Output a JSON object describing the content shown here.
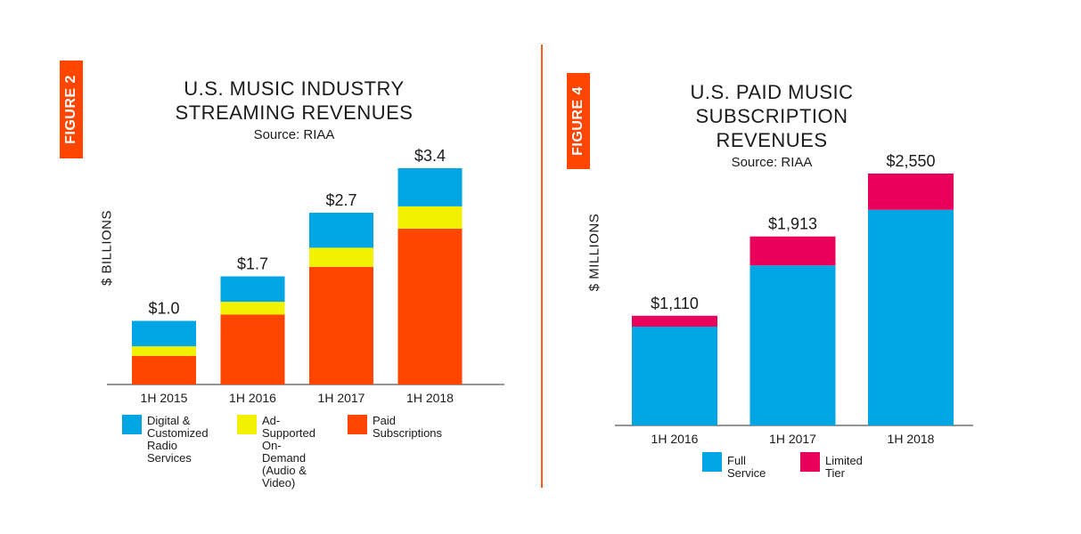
{
  "left": {
    "figure_tab": "FIGURE 2",
    "title_line1": "U.S. MUSIC INDUSTRY",
    "title_line2": "STREAMING REVENUES",
    "source": "Source: RIAA",
    "ylabel": "$ BILLIONS",
    "legend": [
      {
        "label": "Digital &\nCustomized\nRadio Services",
        "color": "#00a6e3"
      },
      {
        "label": "Ad-Supported\nOn-Demand\n(Audio & Video)",
        "color": "#f2f200"
      },
      {
        "label": "Paid Subscriptions",
        "color": "#ff4500"
      }
    ]
  },
  "right": {
    "figure_tab": "FIGURE 4",
    "title_line1": "U.S. PAID MUSIC",
    "title_line2": "SUBSCRIPTION REVENUES",
    "source": "Source: RIAA",
    "ylabel": "$ MILLIONS",
    "legend": [
      {
        "label": "Full Service",
        "color": "#00a6e3"
      },
      {
        "label": "Limited Tier",
        "color": "#e8005a"
      }
    ]
  },
  "chart_data": [
    {
      "type": "bar",
      "stacked": true,
      "title": "U.S. MUSIC INDUSTRY STREAMING REVENUES",
      "subtitle": "Source: RIAA",
      "xlabel": "",
      "ylabel": "$ BILLIONS",
      "categories": [
        "1H 2015",
        "1H 2016",
        "1H 2017",
        "1H 2018"
      ],
      "series": [
        {
          "name": "Paid Subscriptions",
          "color": "#ff4500",
          "values": [
            0.45,
            1.1,
            1.85,
            2.45
          ]
        },
        {
          "name": "Ad-Supported On-Demand (Audio & Video)",
          "color": "#f2f200",
          "values": [
            0.15,
            0.2,
            0.3,
            0.35
          ]
        },
        {
          "name": "Digital & Customized Radio Services",
          "color": "#00a6e3",
          "values": [
            0.4,
            0.4,
            0.55,
            0.6
          ]
        }
      ],
      "totals": [
        1.0,
        1.7,
        2.7,
        3.4
      ],
      "total_labels": [
        "$1.0",
        "$1.7",
        "$2.7",
        "$3.4"
      ],
      "ylim": [
        0,
        3.4
      ],
      "grid": false,
      "legend_position": "bottom"
    },
    {
      "type": "bar",
      "stacked": true,
      "title": "U.S. PAID MUSIC SUBSCRIPTION REVENUES",
      "subtitle": "Source: RIAA",
      "xlabel": "",
      "ylabel": "$ MILLIONS",
      "categories": [
        "1H 2016",
        "1H 2017",
        "1H 2018"
      ],
      "series": [
        {
          "name": "Full Service",
          "color": "#00a6e3",
          "values": [
            1000,
            1620,
            2183
          ]
        },
        {
          "name": "Limited Tier",
          "color": "#e8005a",
          "values": [
            110,
            293,
            367
          ]
        }
      ],
      "totals": [
        1110,
        1913,
        2550
      ],
      "total_labels": [
        "$1,110",
        "$1,913",
        "$2,550"
      ],
      "ylim": [
        0,
        2550
      ],
      "grid": false,
      "legend_position": "bottom"
    }
  ]
}
